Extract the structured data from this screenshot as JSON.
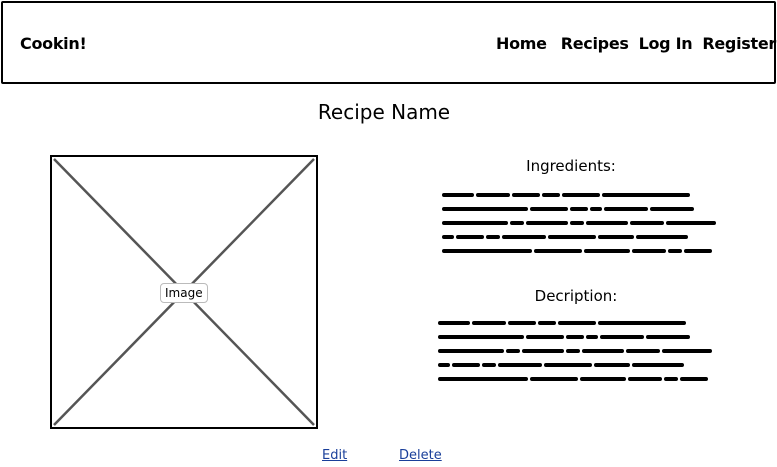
{
  "header": {
    "brand": "Cookin!",
    "nav": {
      "home": "Home",
      "recipes": "Recipes",
      "login": "Log In",
      "register": "Register"
    }
  },
  "recipe": {
    "title": "Recipe Name",
    "image_label": "Image",
    "ingredients_title": "Ingredients:",
    "description_title": "Decription:"
  },
  "actions": {
    "edit": "Edit",
    "delete": "Delete"
  },
  "colors": {
    "link": "#1a3f9a",
    "border": "#000000"
  }
}
